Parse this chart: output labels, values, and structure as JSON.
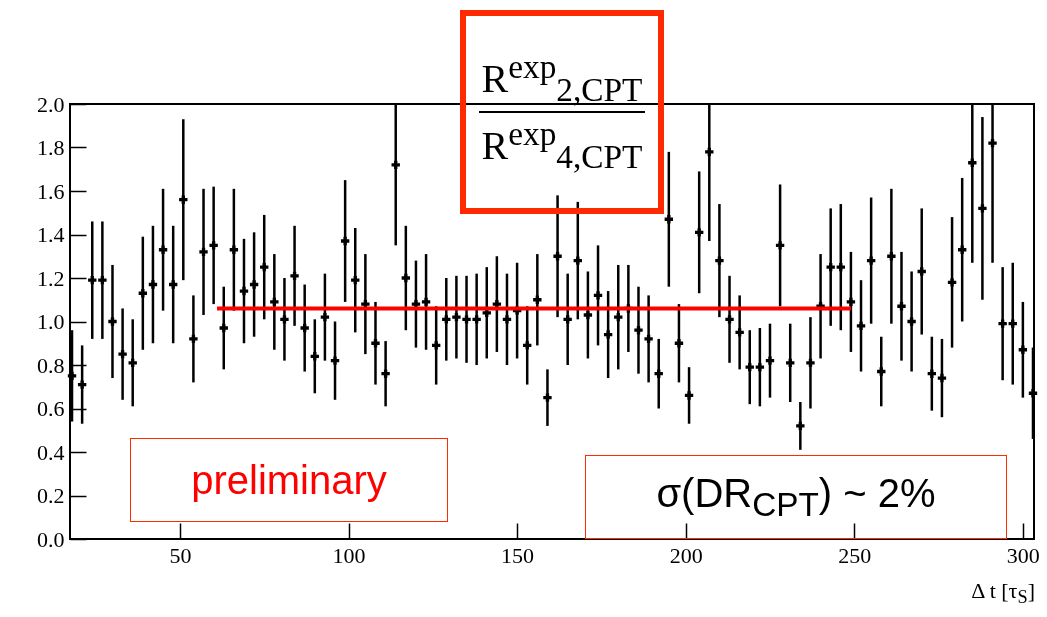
{
  "chart_data": {
    "type": "scatter",
    "xlabel": "Δ t [τ$_{S}$]",
    "annotations": [
      "preliminary",
      "σ(DR$_{CPT}$)  ~ 2%",
      "R$^{exp}$$_{2,CPT}$",
      "R$^{exp}$$_{4,CPT}$"
    ],
    "xlim": [
      17.4,
      303.3
    ],
    "xticks": [
      50,
      100,
      150,
      200,
      250,
      300
    ],
    "ylim": [
      0,
      2
    ],
    "yticks": [
      {
        "value": 0,
        "label": "0.0"
      },
      0.2,
      0.4,
      0.6,
      0.8,
      {
        "value": 1,
        "label": "1.0"
      },
      1.2,
      1.4,
      1.6,
      1.8,
      {
        "value": 2,
        "label": "2.0"
      }
    ],
    "series": [
      {
        "marker": "cross",
        "color": "#000000",
        "x": [
          18,
          21,
          24,
          27,
          30,
          33,
          36,
          39,
          42,
          45,
          48,
          51,
          54,
          57,
          60,
          63,
          66,
          69,
          72,
          75,
          78,
          81,
          84,
          87,
          90,
          93,
          96,
          99,
          102,
          105,
          108,
          111,
          114,
          117,
          120,
          123,
          126,
          129,
          132,
          135,
          138,
          141,
          144,
          147,
          150,
          153,
          156,
          159,
          162,
          165,
          168,
          171,
          174,
          177,
          180,
          183,
          186,
          189,
          192,
          195,
          198,
          201,
          204,
          207,
          210,
          213,
          216,
          219,
          222,
          225,
          228,
          231,
          234,
          237,
          240,
          243,
          246,
          249,
          252,
          255,
          258,
          261,
          264,
          267,
          270,
          273,
          276,
          279,
          282,
          285,
          288,
          291,
          294,
          297,
          300,
          303
        ],
        "values": [
          0.75,
          0.71,
          1.19,
          1.19,
          1.0,
          0.85,
          0.81,
          1.13,
          1.17,
          1.33,
          1.17,
          1.56,
          0.92,
          1.32,
          1.35,
          0.97,
          1.33,
          1.14,
          1.17,
          1.25,
          1.09,
          1.01,
          1.21,
          0.97,
          0.84,
          1.02,
          0.82,
          1.37,
          1.19,
          1.08,
          0.9,
          0.76,
          1.72,
          1.2,
          1.08,
          1.09,
          0.89,
          1.01,
          1.02,
          1.01,
          1.01,
          1.04,
          1.08,
          1.01,
          1.05,
          0.89,
          1.1,
          0.65,
          1.3,
          1.01,
          1.28,
          1.03,
          1.12,
          0.94,
          1.02,
          1.06,
          0.96,
          0.92,
          0.76,
          1.47,
          0.9,
          0.66,
          1.41,
          1.78,
          1.28,
          1.01,
          0.95,
          0.79,
          0.79,
          0.82,
          1.35,
          0.81,
          0.52,
          0.81,
          1.07,
          1.25,
          1.25,
          1.09,
          0.98,
          1.28,
          0.77,
          1.3,
          1.07,
          1.0,
          1.23,
          0.76,
          0.74,
          1.18,
          1.33,
          1.73,
          1.52,
          1.82,
          0.99,
          0.99,
          0.87,
          0.67
        ],
        "errors": [
          0.21,
          0.18,
          0.27,
          0.27,
          0.26,
          0.21,
          0.2,
          0.26,
          0.27,
          0.28,
          0.27,
          0.37,
          0.2,
          0.29,
          0.27,
          0.19,
          0.28,
          0.24,
          0.24,
          0.24,
          0.22,
          0.19,
          0.23,
          0.2,
          0.17,
          0.2,
          0.18,
          0.28,
          0.24,
          0.23,
          0.19,
          0.15,
          [
            1.35,
            2.0
          ],
          0.24,
          0.2,
          0.22,
          0.18,
          0.19,
          0.19,
          0.2,
          0.21,
          0.21,
          0.22,
          0.21,
          0.22,
          0.18,
          0.21,
          0.13,
          0.28,
          0.21,
          0.27,
          0.2,
          0.23,
          0.2,
          0.24,
          0.2,
          0.2,
          0.2,
          0.16,
          0.31,
          0.18,
          0.13,
          0.28,
          [
            1.37,
            2.0
          ],
          0.26,
          0.2,
          0.17,
          0.17,
          0.18,
          0.17,
          0.28,
          0.18,
          0.11,
          0.21,
          0.24,
          0.27,
          0.29,
          0.23,
          0.21,
          0.29,
          0.16,
          0.31,
          0.25,
          0.23,
          0.29,
          0.17,
          0.18,
          0.3,
          0.33,
          [
            1.27,
            2.0
          ],
          0.42,
          [
            1.27,
            2.0
          ],
          0.26,
          0.28,
          0.22,
          0.21
        ]
      },
      {
        "type": "line",
        "color": "#ff0000",
        "x": [
          61,
          249
        ],
        "values": [
          1.06,
          1.06
        ]
      }
    ]
  }
}
